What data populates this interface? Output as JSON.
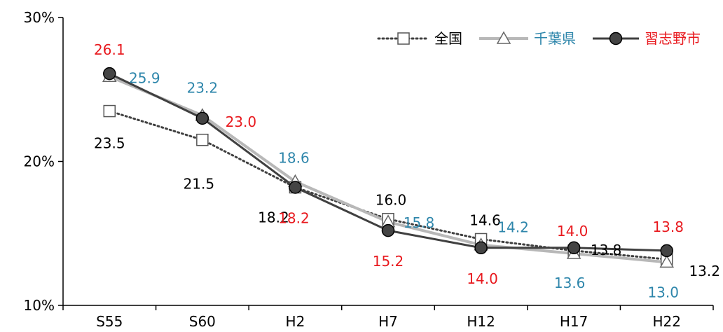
{
  "chart_data": {
    "type": "line",
    "title": "",
    "xlabel": "",
    "ylabel": "",
    "categories": [
      "S55",
      "S60",
      "H2",
      "H7",
      "H12",
      "H17",
      "H22"
    ],
    "ylim": [
      10,
      30
    ],
    "yticks": [
      {
        "value": 10,
        "label": "10%"
      },
      {
        "value": 20,
        "label": "20%"
      },
      {
        "value": 30,
        "label": "30%"
      }
    ],
    "grid": false,
    "legend": "top-right",
    "series": [
      {
        "name": "全国",
        "color": "#404040",
        "label_color": "#000000",
        "line_style": "dotted",
        "marker": "square",
        "values": [
          23.5,
          21.5,
          18.2,
          16.0,
          14.6,
          13.8,
          13.2
        ],
        "labels": [
          "23.5",
          "21.5",
          "18.2",
          "16.0",
          "14.6",
          "13.8",
          "13.2"
        ]
      },
      {
        "name": "千葉県",
        "color": "#b8b8b8",
        "label_color": "#2e86ab",
        "line_style": "solid",
        "marker": "triangle",
        "values": [
          25.9,
          23.2,
          18.6,
          15.8,
          14.2,
          13.6,
          13.0
        ],
        "labels": [
          "25.9",
          "23.2",
          "18.6",
          "15.8",
          "14.2",
          "13.6",
          "13.0"
        ]
      },
      {
        "name": "習志野市",
        "color": "#404040",
        "label_color": "#e8191e",
        "line_style": "solid",
        "marker": "circle",
        "values": [
          26.1,
          23.0,
          18.2,
          15.2,
          14.0,
          14.0,
          13.8
        ],
        "labels": [
          "26.1",
          "23.0",
          "18.2",
          "15.2",
          "14.0",
          "14.0",
          "13.8"
        ]
      }
    ]
  }
}
